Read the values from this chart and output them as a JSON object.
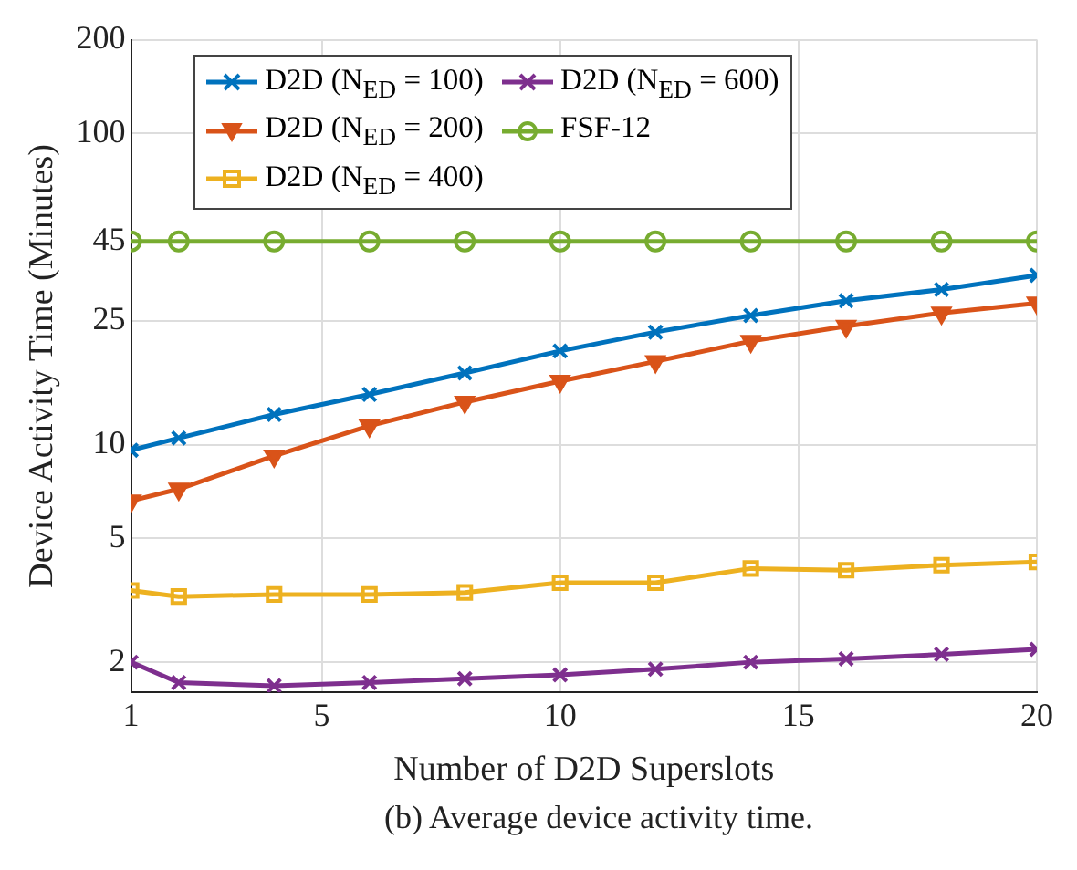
{
  "chart_data": {
    "type": "line",
    "xlabel": "Number of D2D Superslots",
    "ylabel": "Device Activity Time (Minutes)",
    "annotations": [
      "(b) Average device activity time."
    ],
    "x": [
      1,
      2,
      4,
      6,
      8,
      10,
      12,
      14,
      16,
      18,
      20
    ],
    "xlim": [
      1,
      20
    ],
    "xticks": [
      1,
      5,
      10,
      15,
      20
    ],
    "ylim": [
      1.6,
      200
    ],
    "yticks": [
      2,
      5,
      10,
      25,
      45,
      100,
      200
    ],
    "log": "y",
    "grid": true,
    "legend": "top left",
    "line_style": "solid",
    "series": [
      {
        "name": "D2D (N$_{ED}$ = 100)",
        "color": "#0072bd",
        "marker": "cross",
        "values": [
          9.6,
          10.5,
          12.5,
          14.5,
          17,
          20,
          23,
          26,
          29,
          31.5,
          35
        ]
      },
      {
        "name": "D2D (N$_{ED}$ = 200)",
        "color": "#d95319",
        "marker": "triangle",
        "values": [
          6.6,
          7.2,
          9.2,
          11.5,
          13.7,
          16,
          18.5,
          21.5,
          24,
          26.5,
          28.5
        ]
      },
      {
        "name": "D2D (N$_{ED}$ = 400)",
        "color": "#edb120",
        "marker": "square",
        "values": [
          3.4,
          3.25,
          3.3,
          3.3,
          3.35,
          3.6,
          3.6,
          4.0,
          3.95,
          4.1,
          4.2
        ]
      },
      {
        "name": "D2D (N$_{ED}$ = 600)",
        "color": "#7e2f8e",
        "marker": "cross",
        "values": [
          2.0,
          1.72,
          1.68,
          1.72,
          1.77,
          1.82,
          1.9,
          2.0,
          2.05,
          2.12,
          2.2
        ]
      },
      {
        "name": "FSF-12",
        "color": "#77ac30",
        "marker": "circle",
        "values": [
          45,
          45,
          45,
          45,
          45,
          45,
          45,
          45,
          45,
          45,
          45
        ]
      }
    ]
  }
}
